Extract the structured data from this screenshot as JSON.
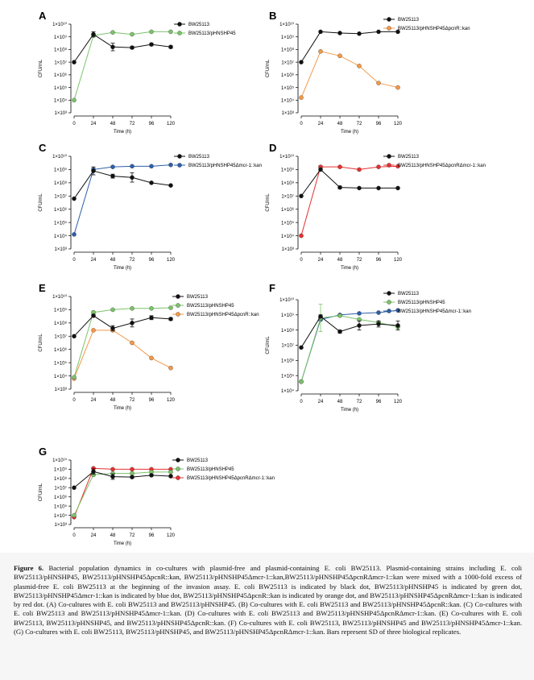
{
  "panels": [
    {
      "label": "A",
      "ylabel": "CFU/mL",
      "xlabel": "Time (h)",
      "series": [
        {
          "name": "BW25113",
          "color": "#111111",
          "y": [
            7.0,
            9.2,
            8.2,
            8.15,
            8.4,
            8.2
          ],
          "err": [
            0.05,
            0.2,
            0.3,
            0.1,
            0.1,
            0.1
          ]
        },
        {
          "name": "BW25113/pHNSHP45",
          "color": "#7cc36a",
          "y": [
            4.0,
            9.1,
            9.35,
            9.2,
            9.4,
            9.4
          ],
          "err": [
            0.05,
            0.1,
            0.05,
            0.05,
            0.05,
            0.05
          ]
        }
      ]
    },
    {
      "label": "B",
      "ylabel": "CFU/mL",
      "xlabel": "Time (h)",
      "series": [
        {
          "name": "BW25113",
          "color": "#111111",
          "y": [
            7.0,
            9.4,
            9.3,
            9.25,
            9.4,
            9.4
          ],
          "err": [
            0.05,
            0.05,
            0.05,
            0.05,
            0.05,
            0.05
          ]
        },
        {
          "name": "BW25113/pHNSHP45ΔpcnR::kan",
          "color": "#f2994a",
          "y": [
            4.2,
            7.85,
            7.5,
            6.7,
            5.35,
            5.0
          ],
          "err": [
            0.05,
            0.05,
            0.05,
            0.05,
            0.05,
            0.05
          ]
        }
      ]
    },
    {
      "label": "C",
      "ylabel": "CFU/mL",
      "xlabel": "Time (h)",
      "series": [
        {
          "name": "BW25113",
          "color": "#111111",
          "y": [
            6.8,
            8.9,
            8.5,
            8.4,
            8.0,
            7.8
          ],
          "err": [
            0.05,
            0.3,
            0.15,
            0.35,
            0.05,
            0.05
          ]
        },
        {
          "name": "BW25113/pHNSHP45Δmcr-1::kan",
          "color": "#2e5fa8",
          "y": [
            4.1,
            9.0,
            9.2,
            9.25,
            9.25,
            9.35
          ],
          "err": [
            0.05,
            0.1,
            0.05,
            0.05,
            0.05,
            0.05
          ]
        }
      ]
    },
    {
      "label": "D",
      "ylabel": "CFU/mL",
      "xlabel": "Time (h)",
      "series": [
        {
          "name": "BW25113",
          "color": "#111111",
          "y": [
            7.0,
            9.0,
            7.65,
            7.6,
            7.6,
            7.6
          ],
          "err": [
            0.05,
            0.1,
            0.1,
            0.05,
            0.05,
            0.05
          ]
        },
        {
          "name": "BW25113/pHNSHP45ΔpcnRΔmcr-1::kan",
          "color": "#e53030",
          "y": [
            4.0,
            9.2,
            9.2,
            9.0,
            9.2,
            9.25
          ],
          "err": [
            0.05,
            0.1,
            0.05,
            0.05,
            0.05,
            0.05
          ]
        }
      ]
    },
    {
      "label": "E",
      "ylabel": "CFU/mL",
      "xlabel": "Time (h)",
      "series": [
        {
          "name": "BW25113",
          "color": "#111111",
          "y": [
            7.0,
            8.55,
            7.6,
            8.0,
            8.4,
            8.3
          ],
          "err": [
            0.05,
            0.1,
            0.2,
            0.3,
            0.15,
            0.1
          ]
        },
        {
          "name": "BW25113/pHNSHP45",
          "color": "#7cc36a",
          "y": [
            3.9,
            8.8,
            9.0,
            9.1,
            9.1,
            9.15
          ],
          "err": [
            0.05,
            0.1,
            0.05,
            0.05,
            0.05,
            0.05
          ]
        },
        {
          "name": "BW25113/pHNSHP45ΔpcnR::kan",
          "color": "#f2994a",
          "y": [
            3.8,
            7.45,
            7.45,
            6.5,
            5.35,
            4.6
          ],
          "err": [
            0.05,
            0.05,
            0.05,
            0.05,
            0.05,
            0.05
          ]
        }
      ]
    },
    {
      "label": "F",
      "ylabel": "CFU/mL",
      "xlabel": "Time (h)",
      "series": [
        {
          "name": "BW25113",
          "color": "#111111",
          "y": [
            6.85,
            8.9,
            7.9,
            8.3,
            8.4,
            8.3
          ],
          "err": [
            0.05,
            0.1,
            0.1,
            0.3,
            0.2,
            0.3
          ]
        },
        {
          "name": "BW25113/pHNSHP45",
          "color": "#7cc36a",
          "y": [
            4.6,
            8.8,
            8.95,
            8.7,
            8.5,
            8.2
          ],
          "err": [
            0.05,
            0.9,
            0.05,
            0.05,
            0.05,
            0.05
          ]
        },
        {
          "name": "BW25113/pHNSHP45Δmcr-1::kan",
          "color": "#2e5fa8",
          "y": [
            4.6,
            8.7,
            9.0,
            9.1,
            9.15,
            9.3
          ],
          "err": [
            0.05,
            0.1,
            0.05,
            0.05,
            0.05,
            0.05
          ]
        }
      ]
    },
    {
      "label": "G",
      "ylabel": "CFU/mL",
      "xlabel": "Time (h)",
      "series": [
        {
          "name": "BW25113",
          "color": "#111111",
          "y": [
            7.0,
            8.75,
            8.2,
            8.15,
            8.35,
            8.25
          ],
          "err": [
            0.05,
            0.3,
            0.3,
            0.1,
            0.1,
            0.1
          ]
        },
        {
          "name": "BW25113/pHNSHP45",
          "color": "#7cc36a",
          "y": [
            4.0,
            8.4,
            8.55,
            8.55,
            8.7,
            8.7
          ],
          "err": [
            0.05,
            0.15,
            0.05,
            0.05,
            0.05,
            0.05
          ]
        },
        {
          "name": "BW25113/pHNSHP45ΔpcnRΔmcr-1::kan",
          "color": "#e53030",
          "y": [
            3.8,
            9.1,
            9.0,
            9.0,
            9.0,
            9.0
          ],
          "err": [
            0.05,
            0.1,
            0.05,
            0.05,
            0.05,
            0.05
          ]
        }
      ]
    }
  ],
  "axis": {
    "x": [
      0,
      24,
      48,
      72,
      96,
      120
    ],
    "xlim": [
      0,
      120
    ],
    "ylim": [
      3,
      10
    ],
    "ylog": true,
    "ytick_labels": [
      "1×10³",
      "1×10⁴",
      "1×10⁵",
      "1×10⁶",
      "1×10⁷",
      "1×10⁸",
      "1×10⁹",
      "1×10¹⁰"
    ]
  },
  "chart_data": [
    {
      "type": "line",
      "title": "A",
      "x": [
        0,
        24,
        48,
        72,
        96,
        120
      ],
      "xlabel": "Time (h)",
      "ylabel": "CFU/mL",
      "ylim": [
        1000,
        10000000000
      ],
      "yscale": "log",
      "series": [
        {
          "name": "BW25113",
          "values": [
            10000000.0,
            1600000000.0,
            160000000.0,
            140000000.0,
            250000000.0,
            160000000.0
          ]
        },
        {
          "name": "BW25113/pHNSHP45",
          "values": [
            10000.0,
            1300000000.0,
            2200000000.0,
            1600000000.0,
            2500000000.0,
            2500000000.0
          ]
        }
      ]
    },
    {
      "type": "line",
      "title": "B",
      "x": [
        0,
        24,
        48,
        72,
        96,
        120
      ],
      "xlabel": "Time (h)",
      "ylabel": "CFU/mL",
      "ylim": [
        1000,
        10000000000
      ],
      "yscale": "log",
      "series": [
        {
          "name": "BW25113",
          "values": [
            10000000.0,
            2500000000.0,
            2000000000.0,
            1800000000.0,
            2500000000.0,
            2500000000.0
          ]
        },
        {
          "name": "BW25113/pHNSHP45ΔpcnR::kan",
          "values": [
            16000.0,
            70000000.0,
            32000000.0,
            5000000.0,
            220000.0,
            100000.0
          ]
        }
      ]
    },
    {
      "type": "line",
      "title": "C",
      "x": [
        0,
        24,
        48,
        72,
        96,
        120
      ],
      "xlabel": "Time (h)",
      "ylabel": "CFU/mL",
      "ylim": [
        1000,
        10000000000
      ],
      "yscale": "log",
      "series": [
        {
          "name": "BW25113",
          "values": [
            6300000.0,
            800000000.0,
            320000000.0,
            250000000.0,
            100000000.0,
            63000000.0
          ]
        },
        {
          "name": "BW25113/pHNSHP45Δmcr-1::kan",
          "values": [
            13000.0,
            1000000000.0,
            1600000000.0,
            1800000000.0,
            1800000000.0,
            2200000000.0
          ]
        }
      ]
    },
    {
      "type": "line",
      "title": "D",
      "x": [
        0,
        24,
        48,
        72,
        96,
        120
      ],
      "xlabel": "Time (h)",
      "ylabel": "CFU/mL",
      "ylim": [
        1000,
        10000000000
      ],
      "yscale": "log",
      "series": [
        {
          "name": "BW25113",
          "values": [
            10000000.0,
            1000000000.0,
            45000000.0,
            40000000.0,
            40000000.0,
            40000000.0
          ]
        },
        {
          "name": "BW25113/pHNSHP45ΔpcnRΔmcr-1::kan",
          "values": [
            10000.0,
            1600000000.0,
            1600000000.0,
            1000000000.0,
            1600000000.0,
            1800000000.0
          ]
        }
      ]
    },
    {
      "type": "line",
      "title": "E",
      "x": [
        0,
        24,
        48,
        72,
        96,
        120
      ],
      "xlabel": "Time (h)",
      "ylabel": "CFU/mL",
      "ylim": [
        1000,
        10000000000
      ],
      "yscale": "log",
      "series": [
        {
          "name": "BW25113",
          "values": [
            10000000.0,
            350000000.0,
            40000000.0,
            100000000.0,
            250000000.0,
            200000000.0
          ]
        },
        {
          "name": "BW25113/pHNSHP45",
          "values": [
            8000.0,
            630000000.0,
            1000000000.0,
            1300000000.0,
            1300000000.0,
            1400000000.0
          ]
        },
        {
          "name": "BW25113/pHNSHP45ΔpcnR::kan",
          "values": [
            6300.0,
            28000000.0,
            28000000.0,
            3200000.0,
            220000.0,
            40000.0
          ]
        }
      ]
    },
    {
      "type": "line",
      "title": "F",
      "x": [
        0,
        24,
        48,
        72,
        96,
        120
      ],
      "xlabel": "Time (h)",
      "ylabel": "CFU/mL",
      "ylim": [
        10000,
        10000000000
      ],
      "yscale": "log",
      "series": [
        {
          "name": "BW25113",
          "values": [
            7000000.0,
            800000000.0,
            80000000.0,
            200000000.0,
            250000000.0,
            200000000.0
          ]
        },
        {
          "name": "BW25113/pHNSHP45",
          "values": [
            40000.0,
            630000000.0,
            900000000.0,
            500000000.0,
            320000000.0,
            160000000.0
          ]
        },
        {
          "name": "BW25113/pHNSHP45Δmcr-1::kan",
          "values": [
            40000.0,
            500000000.0,
            1000000000.0,
            1300000000.0,
            1400000000.0,
            2000000000.0
          ]
        }
      ]
    },
    {
      "type": "line",
      "title": "G",
      "x": [
        0,
        24,
        48,
        72,
        96,
        120
      ],
      "xlabel": "Time (h)",
      "ylabel": "CFU/mL",
      "ylim": [
        1000,
        10000000000
      ],
      "yscale": "log",
      "series": [
        {
          "name": "BW25113",
          "values": [
            10000000.0,
            560000000.0,
            160000000.0,
            140000000.0,
            220000000.0,
            180000000.0
          ]
        },
        {
          "name": "BW25113/pHNSHP45",
          "values": [
            10000.0,
            250000000.0,
            350000000.0,
            350000000.0,
            500000000.0,
            500000000.0
          ]
        },
        {
          "name": "BW25113/pHNSHP45ΔpcnRΔmcr-1::kan",
          "values": [
            6300.0,
            1300000000.0,
            1000000000.0,
            1000000000.0,
            1000000000.0,
            1000000000.0
          ]
        }
      ]
    }
  ],
  "caption": {
    "figure_label": "Figure 6.",
    "text": "Bacterial population dynamics in co-cultures with plasmid-free and plasmid-containing E. coli BW25113. Plasmid-containing strains including E. coli BW25113/pHNSHP45, BW25113/pHNSHP45ΔpcnR::kan, BW25113/pHNSHP45Δmcr-1::kan,BW25113/pHNSHP45ΔpcnRΔmcr-1::kan were mixed with a 1000-fold excess of plasmid-free E. coli BW25113 at the beginning of the invasion assay. E. coli BW25113 is indicated by black dot, BW25113/pHNSHP45 is indicated by green dot, BW25113/pHNSHP45Δmcr-1::kan is indicated by blue dot, BW25113/pHNSHP45ΔpcnR::kan is indicated by orange dot, and BW25113/pHNSHP45ΔpcnRΔmcr-1::kan is indicated by red dot. (A) Co-cultures with E. coli BW25113 and BW25113/pHNSHP45. (B) Co-cultures with E. coli BW25113 and BW25113/pHNSHP45ΔpcnR::kan. (C) Co-cultures with E. coli BW25113 and BW25113/pHNSHP45Δmcr-1::kan. (D) Co-cultures with E. coli BW25113 and BW25113/pHNSHP45ΔpcnRΔmcr-1::kan. (E) Co-cultures with E. coli BW25113, BW25113/pHNSHP45, and BW25113/pHNSHP45ΔpcnR::kan. (F) Co-cultures with E. coli BW25113, BW25113/pHNSHP45 and BW25113/pHNSHP45Δmcr-1::kan. (G) Co-cultures with E. coli BW25113, BW25113/pHNSHP45, and BW25113/pHNSHP45ΔpcnRΔmcr-1::kan. Bars represent SD of three biological replicates."
  }
}
